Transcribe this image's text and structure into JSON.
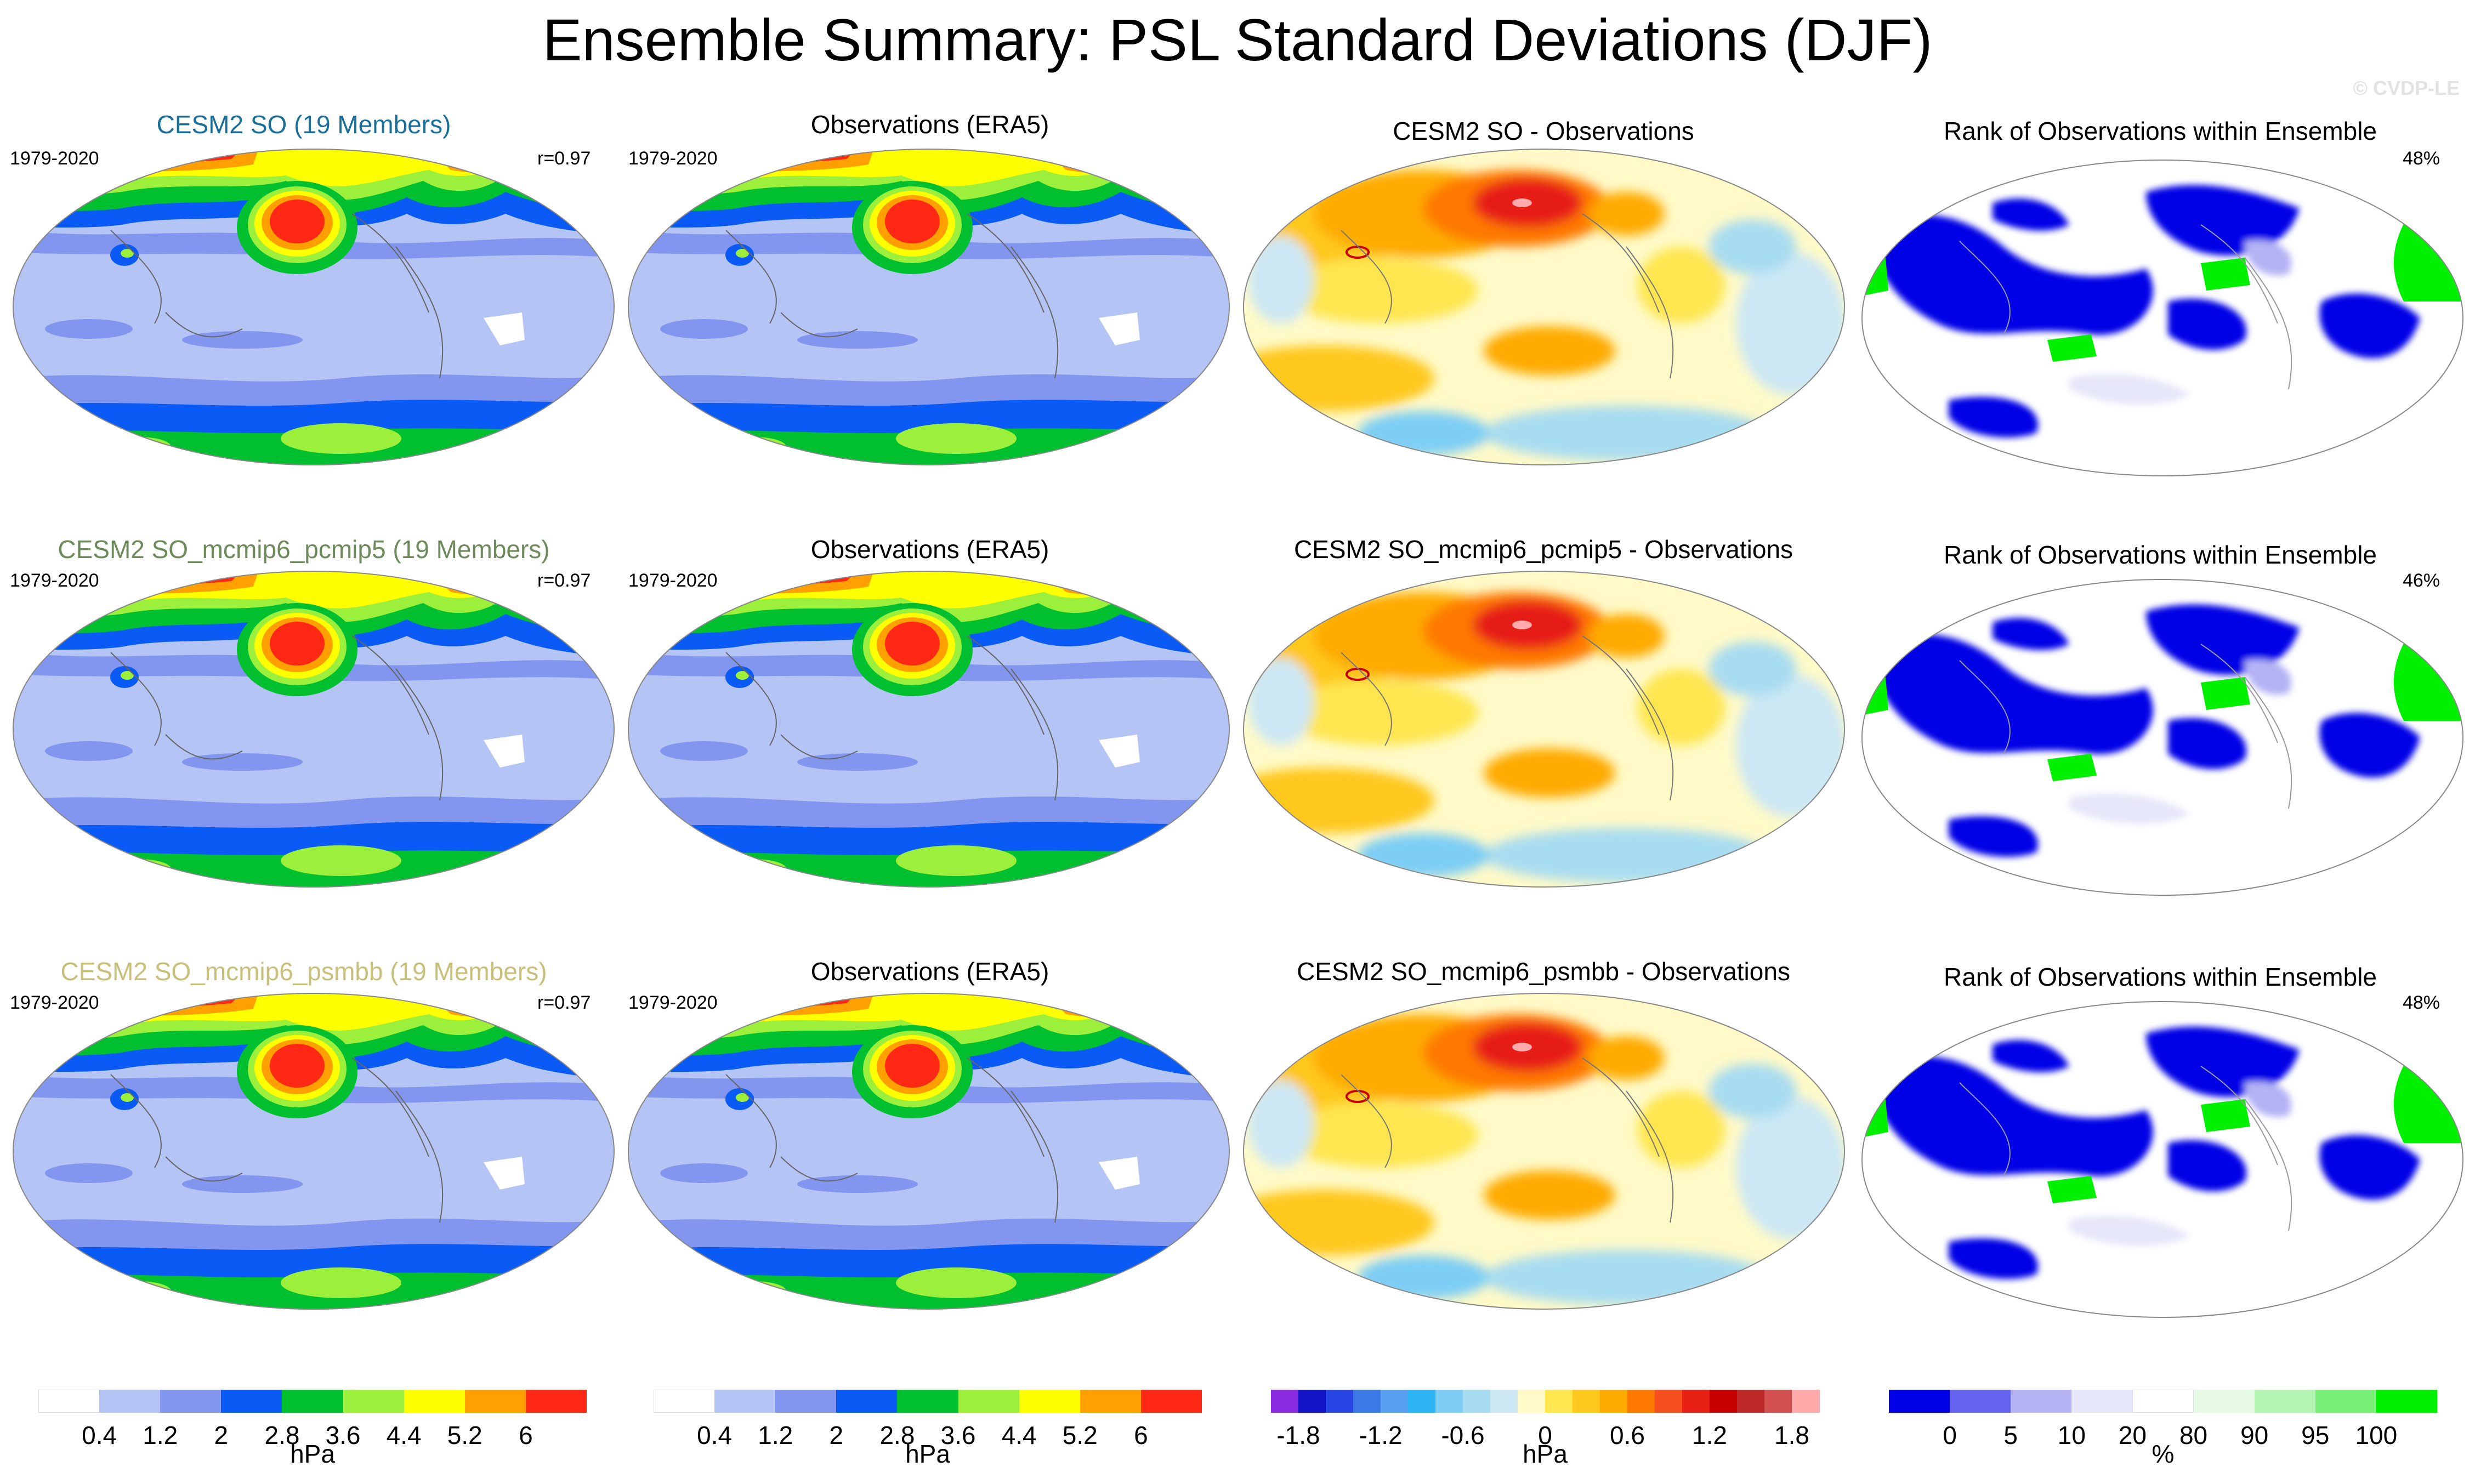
{
  "title": "Ensemble Summary: PSL Standard Deviations (DJF)",
  "watermark": "© CVDP-LE",
  "rows": [
    {
      "model_title": "CESM2 SO (19 Members)",
      "model_title_color": "#1a6f9a",
      "period": "1979-2020",
      "pattern_corr": "r=0.97",
      "obs_title": "Observations (ERA5)",
      "obs_period": "1979-2020",
      "diff_title": "CESM2 SO - Observations",
      "rank_title": "Rank of Observations within Ensemble",
      "rank_pct": "48%"
    },
    {
      "model_title": "CESM2 SO_mcmip6_pcmip5 (19 Members)",
      "model_title_color": "#6c8a5a",
      "period": "1979-2020",
      "pattern_corr": "r=0.97",
      "obs_title": "Observations (ERA5)",
      "obs_period": "1979-2020",
      "diff_title": "CESM2 SO_mcmip6_pcmip5 - Observations",
      "rank_title": "Rank of Observations within Ensemble",
      "rank_pct": "46%"
    },
    {
      "model_title": "CESM2 SO_mcmip6_psmbb (19 Members)",
      "model_title_color": "#c8c07a",
      "period": "1979-2020",
      "pattern_corr": "r=0.97",
      "obs_title": "Observations (ERA5)",
      "obs_period": "1979-2020",
      "diff_title": "CESM2 SO_mcmip6_psmbb - Observations",
      "rank_title": "Rank of Observations within Ensemble",
      "rank_pct": "48%"
    }
  ],
  "colorbars": {
    "stddev": {
      "colors": [
        "#ffffff",
        "#b4c4f4",
        "#8296f0",
        "#0a5af5",
        "#00c030",
        "#9cf03c",
        "#ffff00",
        "#ffa000",
        "#ff2814"
      ],
      "ticks": [
        "0.4",
        "1.2",
        "2",
        "2.8",
        "3.6",
        "4.4",
        "5.2",
        "6"
      ],
      "unit": "hPa"
    },
    "difference": {
      "colors": [
        "#8a2be2",
        "#1414c8",
        "#2846e6",
        "#3c78e6",
        "#5aa0f0",
        "#2db4f5",
        "#7dcdf5",
        "#a8dcf0",
        "#cce8f4",
        "#fffac8",
        "#ffe650",
        "#ffc81e",
        "#ffaa00",
        "#ff7800",
        "#f5501e",
        "#e61e14",
        "#c80000",
        "#be2828",
        "#d25050",
        "#ffaaaa"
      ],
      "ticks": [
        "-1.8",
        "-1.2",
        "-0.6",
        "0",
        "0.6",
        "1.2",
        "1.8"
      ],
      "unit": "hPa"
    },
    "rank": {
      "colors": [
        "#0000e6",
        "#6464f0",
        "#b4b4f5",
        "#e6e6fa",
        "#ffffff",
        "#e6fae6",
        "#b4f5b4",
        "#78f078",
        "#00f000"
      ],
      "ticks": [
        "0",
        "5",
        "10",
        "20",
        "80",
        "90",
        "95",
        "100"
      ],
      "unit": "%"
    }
  }
}
